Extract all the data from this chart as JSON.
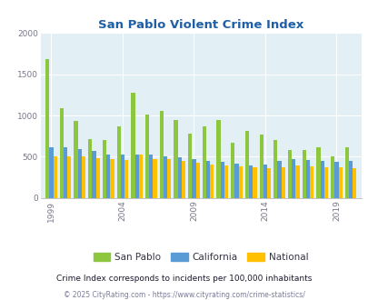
{
  "title": "San Pablo Violent Crime Index",
  "subtitle": "Crime Index corresponds to incidents per 100,000 inhabitants",
  "footer": "© 2025 CityRating.com - https://www.cityrating.com/crime-statistics/",
  "years": [
    1999,
    2000,
    2001,
    2002,
    2003,
    2004,
    2005,
    2006,
    2007,
    2008,
    2009,
    2010,
    2011,
    2012,
    2013,
    2014,
    2015,
    2016,
    2017,
    2018,
    2019,
    2020
  ],
  "san_pablo": [
    1680,
    1090,
    930,
    710,
    700,
    870,
    1280,
    1010,
    1055,
    950,
    780,
    870,
    950,
    670,
    810,
    770,
    700,
    580,
    580,
    620,
    500,
    620
  ],
  "california": [
    615,
    620,
    590,
    575,
    530,
    525,
    530,
    530,
    500,
    495,
    470,
    445,
    440,
    420,
    395,
    410,
    445,
    470,
    460,
    455,
    440,
    450
  ],
  "national": [
    505,
    505,
    500,
    480,
    470,
    465,
    530,
    475,
    470,
    455,
    430,
    405,
    390,
    385,
    370,
    365,
    375,
    390,
    385,
    375,
    370,
    365
  ],
  "colors": {
    "san_pablo": "#8dc63f",
    "california": "#5b9bd5",
    "national": "#ffc000"
  },
  "background_color": "#e2eff5",
  "ylim": [
    0,
    2000
  ],
  "yticks": [
    0,
    500,
    1000,
    1500,
    2000
  ],
  "xtick_years": [
    1999,
    2004,
    2009,
    2014,
    2019
  ],
  "title_color": "#1f5fa6",
  "subtitle_color": "#1a1a2e",
  "footer_color": "#7a7a9a"
}
